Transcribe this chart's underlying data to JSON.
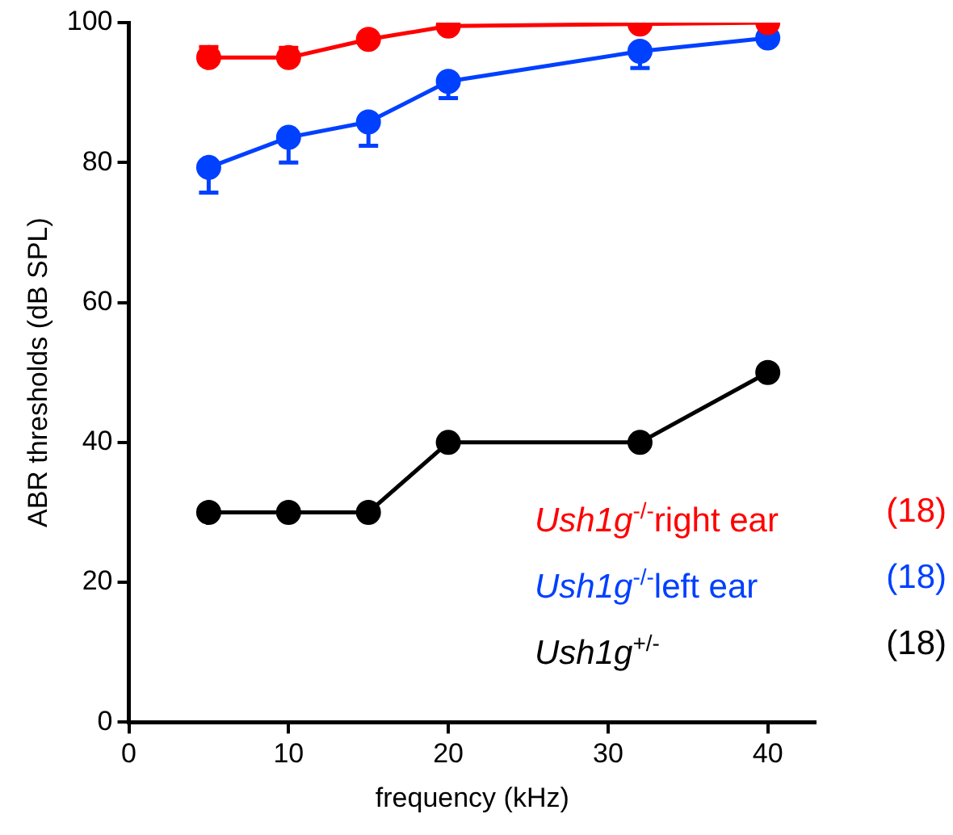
{
  "chart_data": {
    "type": "line",
    "xlabel": "frequency (kHz)",
    "ylabel": "ABR thresholds (dB SPL)",
    "xlim": [
      0,
      43
    ],
    "xticks": [
      0,
      10,
      20,
      30,
      40
    ],
    "ylim": [
      0,
      100
    ],
    "yticks": [
      0,
      20,
      40,
      60,
      80,
      100
    ],
    "x": [
      5,
      10,
      15,
      20,
      32,
      40
    ],
    "series": [
      {
        "name": "Ush1g$^{-/-}$right ear (18)",
        "color": "#ff0000",
        "values": [
          95,
          95,
          97.6,
          99.5,
          99.8,
          100
        ],
        "errors": [
          [
            95,
            96.5
          ],
          [
            95,
            96.4
          ],
          null,
          null,
          null,
          null
        ]
      },
      {
        "name": "Ush1g$^{-/-}$left ear (18)",
        "color": "#0040ff",
        "values": [
          79.3,
          83.6,
          85.8,
          91.6,
          95.9,
          97.8
        ],
        "errors": [
          [
            75.7,
            79.3
          ],
          [
            80,
            83.6
          ],
          [
            82.4,
            85.8
          ],
          [
            89.2,
            91.6
          ],
          [
            93.5,
            95.9
          ],
          null
        ]
      },
      {
        "name": "Ush1g$^{+/-}$ (18)",
        "color": "#000000",
        "values": [
          30,
          30,
          30,
          40,
          40,
          50
        ]
      }
    ],
    "grid": false,
    "marker": "circle",
    "line_style": "solid"
  }
}
